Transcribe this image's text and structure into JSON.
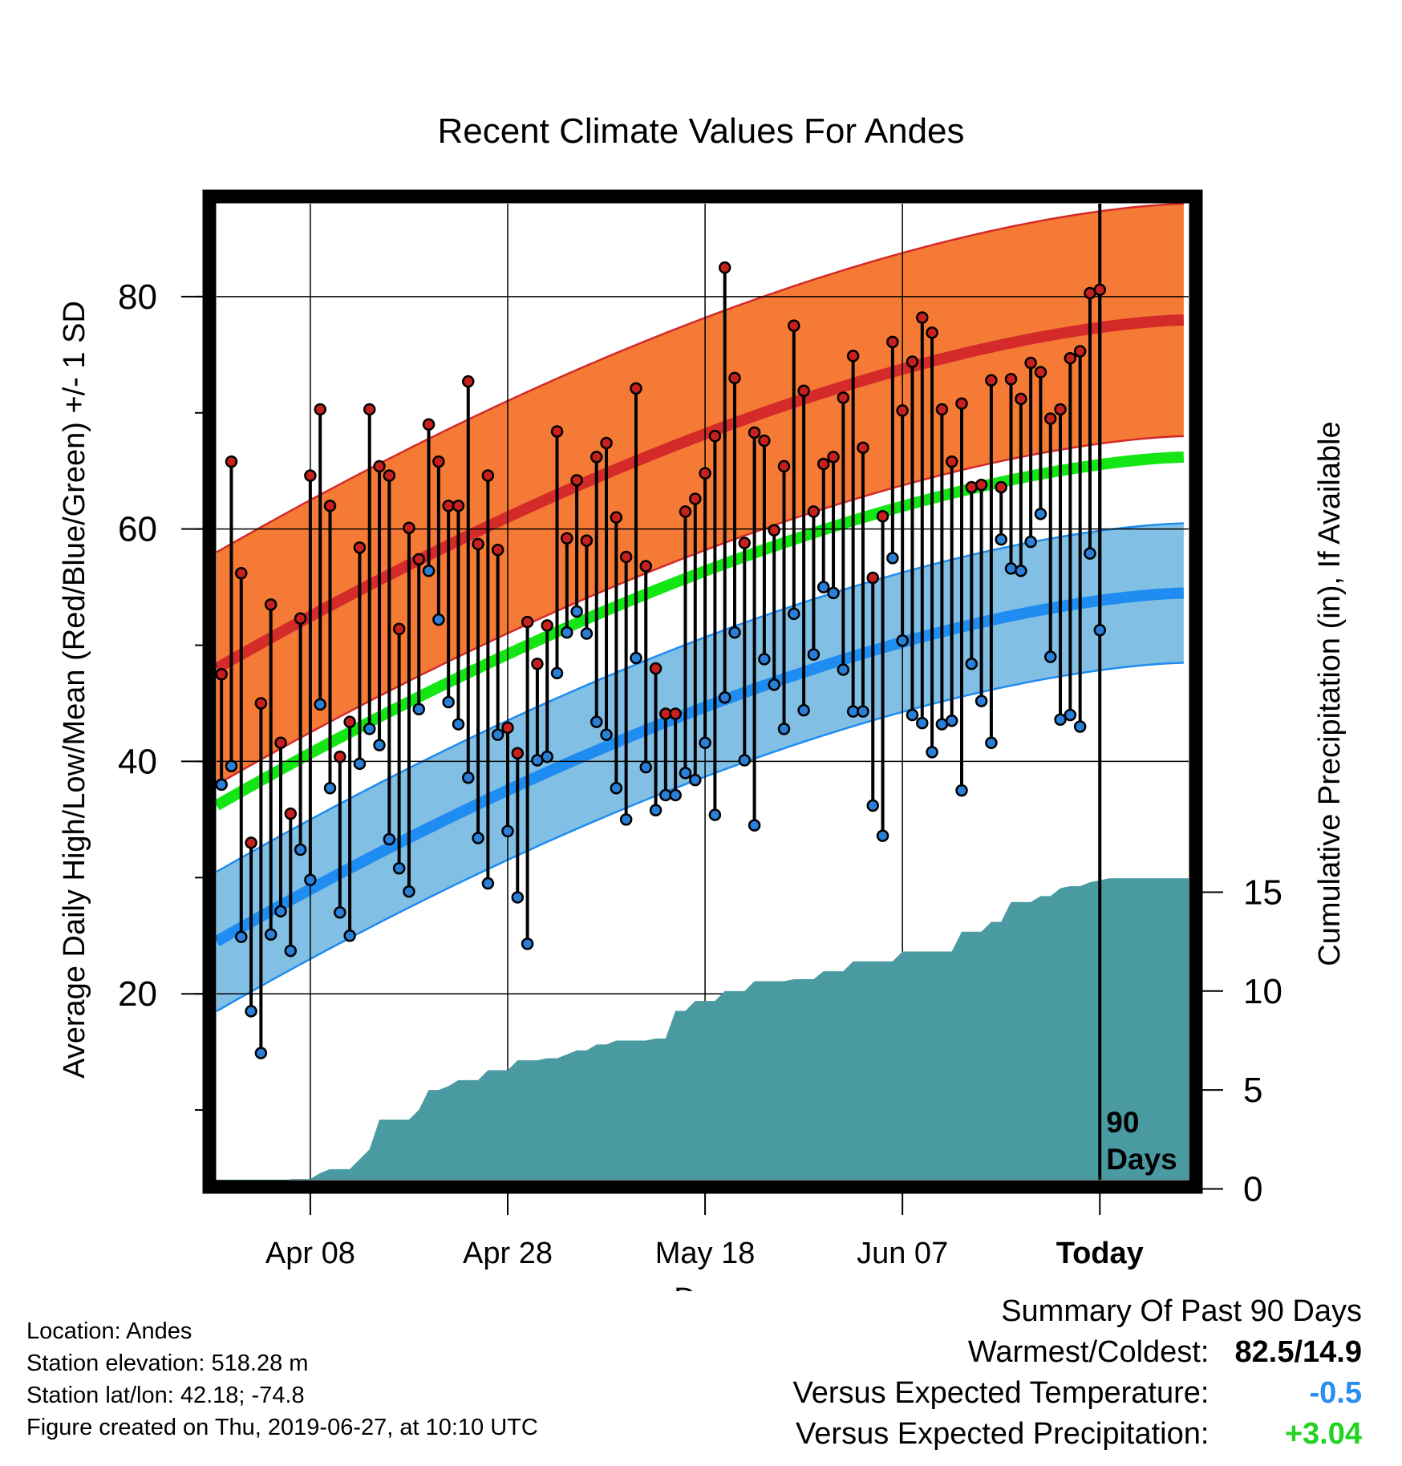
{
  "chart_data": {
    "type": "line",
    "title": "Recent Climate Values For Andes",
    "xlabel": "Day",
    "ylabel": "Average Daily High/Low/Mean (Red/Blue/Green) +/- 1 SD",
    "y2label": "Cumulative Precipitation (in), If Available",
    "x_tick_labels": [
      "Apr 08",
      "Apr 28",
      "May 18",
      "Jun 07",
      "Today"
    ],
    "y_ticks": [
      20,
      40,
      60,
      80
    ],
    "y2_ticks": [
      0,
      5,
      10,
      15
    ],
    "ylim": [
      4,
      88
    ],
    "y2lim": [
      -0.5,
      49
    ],
    "day_range": [
      -89.5,
      9
    ],
    "today_marker": "90\nDays",
    "grid": true,
    "colors": {
      "high_band": "#f47a35",
      "high_mean": "#d42a2a",
      "low_band": "#82bfe5",
      "low_mean": "#1e8cf0",
      "mean": "#14e614",
      "precip": "#4a9aa2",
      "high_dot": "#c8201e",
      "low_dot": "#2a7fd8"
    },
    "normal_high": {
      "start": 48.0,
      "end": 78.0
    },
    "normal_low": {
      "start": 24.5,
      "end": 54.5
    },
    "normal_mean": {
      "start": 36.2,
      "end": 66.2
    },
    "sd_high": 10.0,
    "sd_low": 6.0,
    "daily_high": [
      47.5,
      65.8,
      56.2,
      33.0,
      45.0,
      53.5,
      41.6,
      35.5,
      52.3,
      64.6,
      70.3,
      62.0,
      40.4,
      43.4,
      58.4,
      70.3,
      65.4,
      64.6,
      51.4,
      60.1,
      57.4,
      69.0,
      65.8,
      62.0,
      62.0,
      72.7,
      58.7,
      64.6,
      58.2,
      42.9,
      40.7,
      52.0,
      48.4,
      51.7,
      68.4,
      59.2,
      64.2,
      59.0,
      66.2,
      67.4,
      61.0,
      57.6,
      72.1,
      56.8,
      48.0,
      44.1,
      44.1,
      61.5,
      62.6,
      64.8,
      68.0,
      82.5,
      73.0,
      58.8,
      68.3,
      67.6,
      59.9,
      65.4,
      77.5,
      71.9,
      61.5,
      65.6,
      66.2,
      71.3,
      74.9,
      67.0,
      55.8,
      61.1,
      76.1,
      70.2,
      74.4,
      78.2,
      76.9,
      70.3,
      65.8,
      70.8,
      63.6,
      63.8,
      72.8,
      63.6,
      72.9,
      71.2,
      74.3,
      73.5,
      69.5,
      70.3,
      74.7,
      75.3,
      80.3,
      80.6
    ],
    "daily_low": [
      38.0,
      39.6,
      24.9,
      18.5,
      14.9,
      25.1,
      27.1,
      23.7,
      32.4,
      29.8,
      44.9,
      37.7,
      27.0,
      25.0,
      39.8,
      42.8,
      41.4,
      33.3,
      30.8,
      28.8,
      44.5,
      56.4,
      52.2,
      45.1,
      43.2,
      38.6,
      33.4,
      29.5,
      42.3,
      34.0,
      28.3,
      24.3,
      40.1,
      40.4,
      47.6,
      51.1,
      52.9,
      51.0,
      43.4,
      42.3,
      37.7,
      35.0,
      48.9,
      39.5,
      35.8,
      37.1,
      37.1,
      39.0,
      38.4,
      41.6,
      35.4,
      45.5,
      51.1,
      40.1,
      34.5,
      48.8,
      46.6,
      42.8,
      52.7,
      44.4,
      49.2,
      55.0,
      54.5,
      47.9,
      44.3,
      44.3,
      36.2,
      33.6,
      57.5,
      50.4,
      44.0,
      43.3,
      40.8,
      43.2,
      43.5,
      37.5,
      48.4,
      45.2,
      41.6,
      59.1,
      56.6,
      56.4,
      58.9,
      61.3,
      49.0,
      43.6,
      44.0,
      43.0,
      57.9,
      51.3
    ],
    "precip_cumulative": [
      0,
      0,
      0,
      0,
      0,
      0,
      0,
      0.5,
      0.5,
      0.5,
      0.8,
      1.0,
      1.0,
      1.0,
      1.5,
      2.0,
      3.5,
      3.5,
      3.5,
      3.5,
      4.0,
      5.0,
      5.0,
      5.2,
      5.5,
      5.5,
      5.5,
      6.0,
      6.0,
      6.0,
      6.5,
      6.5,
      6.5,
      6.6,
      6.6,
      6.8,
      7.0,
      7.0,
      7.3,
      7.3,
      7.5,
      7.5,
      7.5,
      7.5,
      7.6,
      7.6,
      9.0,
      9.0,
      9.5,
      9.5,
      9.5,
      10.0,
      10.0,
      10.0,
      10.5,
      10.5,
      10.5,
      10.5,
      10.6,
      10.6,
      10.6,
      11.0,
      11.0,
      11.0,
      11.5,
      11.5,
      11.5,
      11.5,
      11.5,
      12.0,
      12.0,
      12.0,
      12.0,
      12.0,
      12.0,
      13.0,
      13.0,
      13.0,
      13.5,
      13.5,
      14.5,
      14.5,
      14.5,
      14.8,
      14.8,
      15.2,
      15.3,
      15.3,
      15.5,
      15.6,
      15.7,
      15.7,
      15.7,
      15.7,
      15.7,
      15.7,
      15.7,
      15.7,
      15.7,
      15.7
    ]
  },
  "info": {
    "location": "Location: Andes",
    "elevation": "Station elevation: 518.28 m",
    "latlon": "Station lat/lon: 42.18; -74.8",
    "created": "Figure created on Thu, 2019-06-27, at 10:10 UTC"
  },
  "summary": {
    "title": "Summary Of Past 90 Days",
    "warm_cold_label": "Warmest/Coldest:",
    "warm_cold_value": "82.5/14.9",
    "temp_label": "Versus Expected Temperature:",
    "temp_value": "-0.5",
    "temp_color": "#2a8df0",
    "precip_label": "Versus Expected Precipitation:",
    "precip_value": "+3.04",
    "precip_color": "#22d322"
  }
}
